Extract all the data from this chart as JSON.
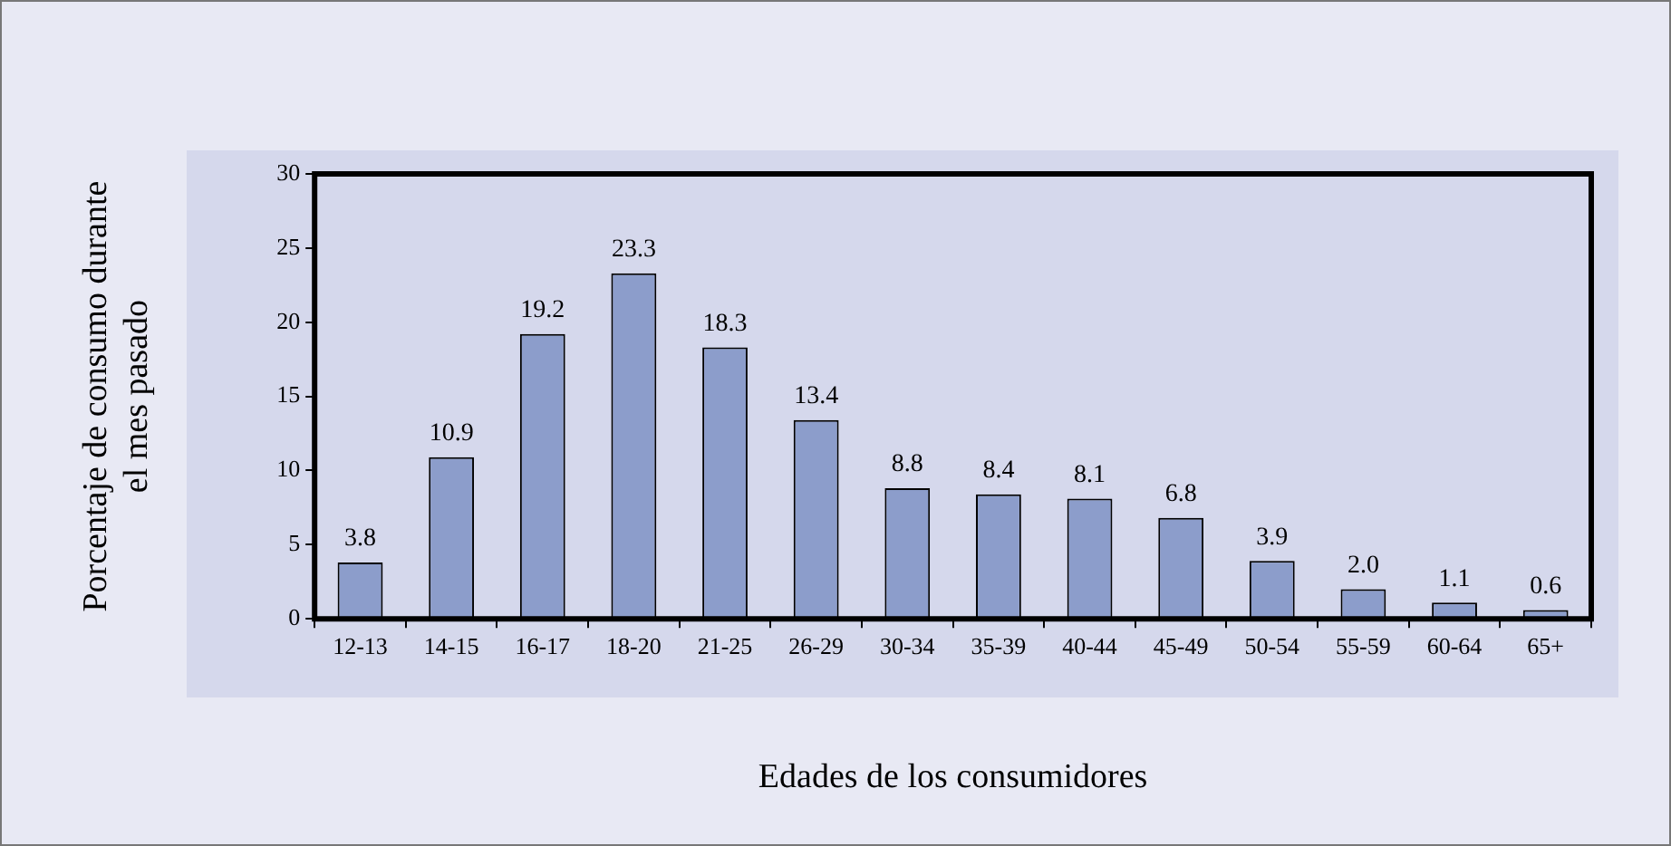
{
  "chart_data": {
    "type": "bar",
    "xlabel": "Edades de los consumidores",
    "ylabel": "Porcentaje de consumo durante\nel mes pasado",
    "categories": [
      "12-13",
      "14-15",
      "16-17",
      "18-20",
      "21-25",
      "26-29",
      "30-34",
      "35-39",
      "40-44",
      "45-49",
      "50-54",
      "55-59",
      "60-64",
      "65+"
    ],
    "values": [
      3.8,
      10.9,
      19.2,
      23.3,
      18.3,
      13.4,
      8.8,
      8.4,
      8.1,
      6.8,
      3.9,
      2.0,
      1.1,
      0.6
    ],
    "value_labels": [
      "3.8",
      "10.9",
      "19.2",
      "23.3",
      "18.3",
      "13.4",
      "8.8",
      "8.4",
      "8.1",
      "6.8",
      "3.9",
      "2.0",
      "1.1",
      "0.6"
    ],
    "color": "#8c9dcb",
    "ylim": [
      0,
      30
    ],
    "yticks": [
      0,
      5,
      10,
      15,
      20,
      25,
      30
    ],
    "grid": false,
    "legend": false
  }
}
